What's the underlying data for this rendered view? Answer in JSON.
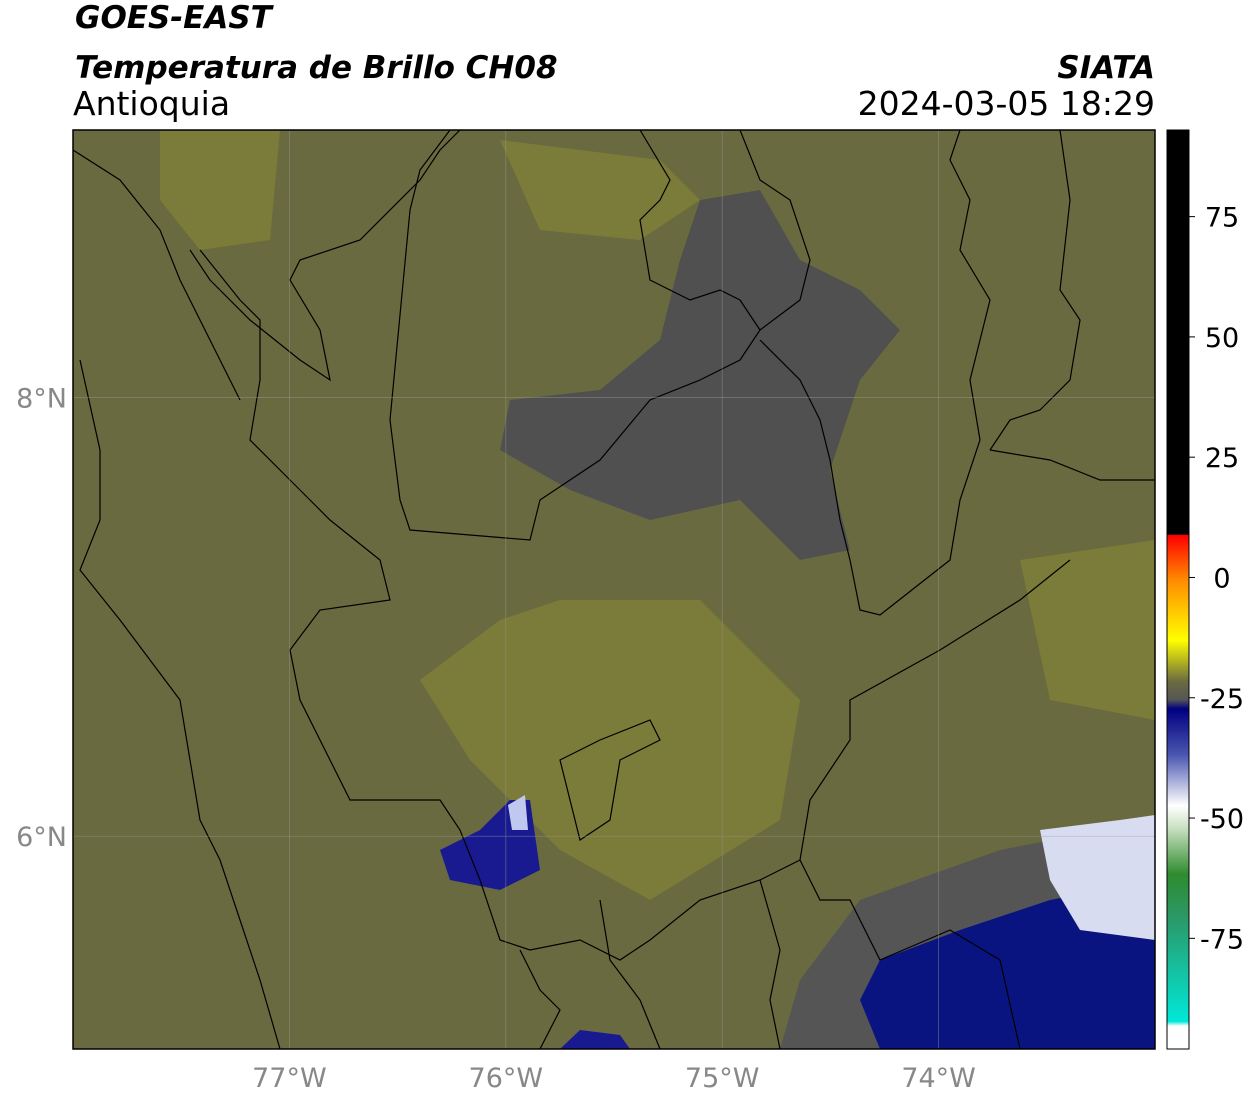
{
  "header": {
    "title": "GOES-EAST",
    "subtitle": "Temperatura de Brillo CH08",
    "region": "Antioquia",
    "source": "SIATA",
    "datetime": "2024-03-05 18:29"
  },
  "map": {
    "xlim": [
      -78,
      -73
    ],
    "ylim": [
      5.03,
      9.22
    ],
    "xticks": [
      {
        "value": -77,
        "label": "77°W"
      },
      {
        "value": -76,
        "label": "76°W"
      },
      {
        "value": -75,
        "label": "75°W"
      },
      {
        "value": -74,
        "label": "74°W"
      }
    ],
    "yticks": [
      {
        "value": 8,
        "label": "8°N"
      },
      {
        "value": 6,
        "label": "6°N"
      }
    ],
    "grid": true
  },
  "colorbar": {
    "lim": [
      -98,
      93
    ],
    "ticks": [
      75,
      50,
      25,
      0,
      -25,
      -50,
      -75
    ]
  }
}
